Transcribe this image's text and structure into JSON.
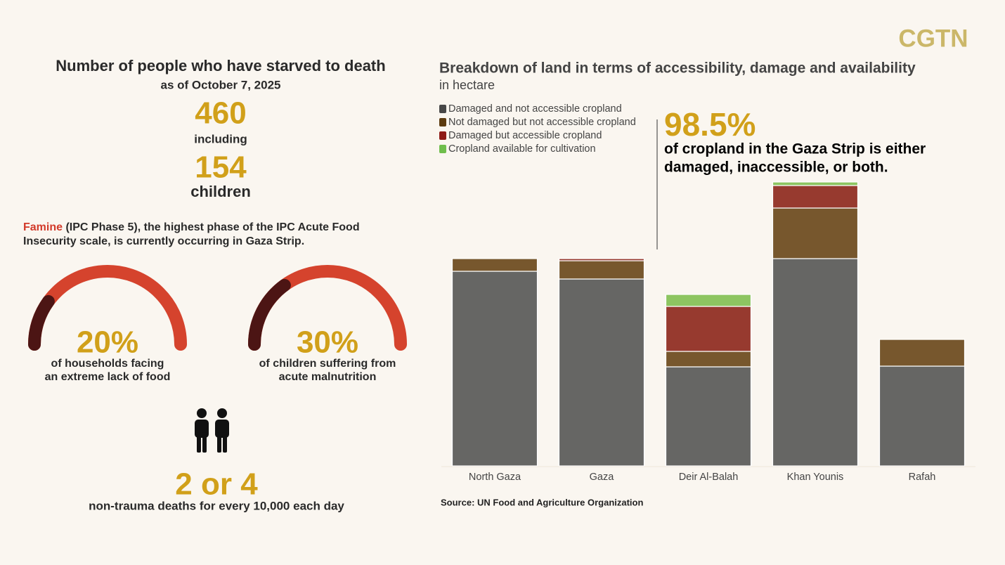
{
  "logo": "CGTN",
  "left": {
    "title": "Number of people who have starved to death",
    "subtitle": "as of October 7, 2025",
    "stat1": "460",
    "stat1_label": "including",
    "stat2": "154",
    "stat2_label": "children",
    "famine": {
      "term": "Famine",
      "lines": [
        " (IPC Phase 5), the highest phase of the IPC Acute Food",
        "Insecurity scale, is currently occurring in Gaza Strip."
      ]
    },
    "gauges": [
      {
        "value": 20,
        "value_label": "20%",
        "caption": [
          "of households facing",
          "an extreme lack of food"
        ]
      },
      {
        "value": 30,
        "value_label": "30%",
        "caption": [
          "of children suffering from",
          "acute malnutrition"
        ]
      }
    ],
    "deaths": "2 or 4",
    "deaths_caption": "non-trauma deaths for every 10,000 each day"
  },
  "chart_data": {
    "type": "stacked_bar",
    "title": "Breakdown of land in terms of accessibility, damage and availability",
    "subtitle": "in hectare",
    "categories": [
      "North Gaza",
      "Gaza",
      "Deir Al-Balah",
      "Khan Younis",
      "Rafah"
    ],
    "series": [
      {
        "name": "Damaged and not accessible cropland",
        "color": "#666664",
        "legend_color": "#474747",
        "values": [
          277,
          266,
          141,
          295,
          142
        ]
      },
      {
        "name": "Not damaged but not accessible cropland",
        "color": "#77572d",
        "legend_color": "#5c3b0f",
        "values": [
          18,
          26,
          22,
          72,
          38
        ]
      },
      {
        "name": "Damaged but accessible cropland",
        "color": "#973a2f",
        "legend_color": "#8e1b17",
        "values": [
          0,
          3,
          64,
          32,
          0
        ]
      },
      {
        "name": "Cropland available for cultivation",
        "color": "#8dc561",
        "legend_color": "#6fbe4c",
        "values": [
          0,
          0,
          17,
          5,
          0
        ]
      }
    ],
    "annotation": {
      "value": "98.5%",
      "lines": [
        "of cropland in the Gaza Strip is either",
        "damaged, inaccessible, or both."
      ]
    },
    "source": "Source: UN Food and Agriculture Organization"
  }
}
